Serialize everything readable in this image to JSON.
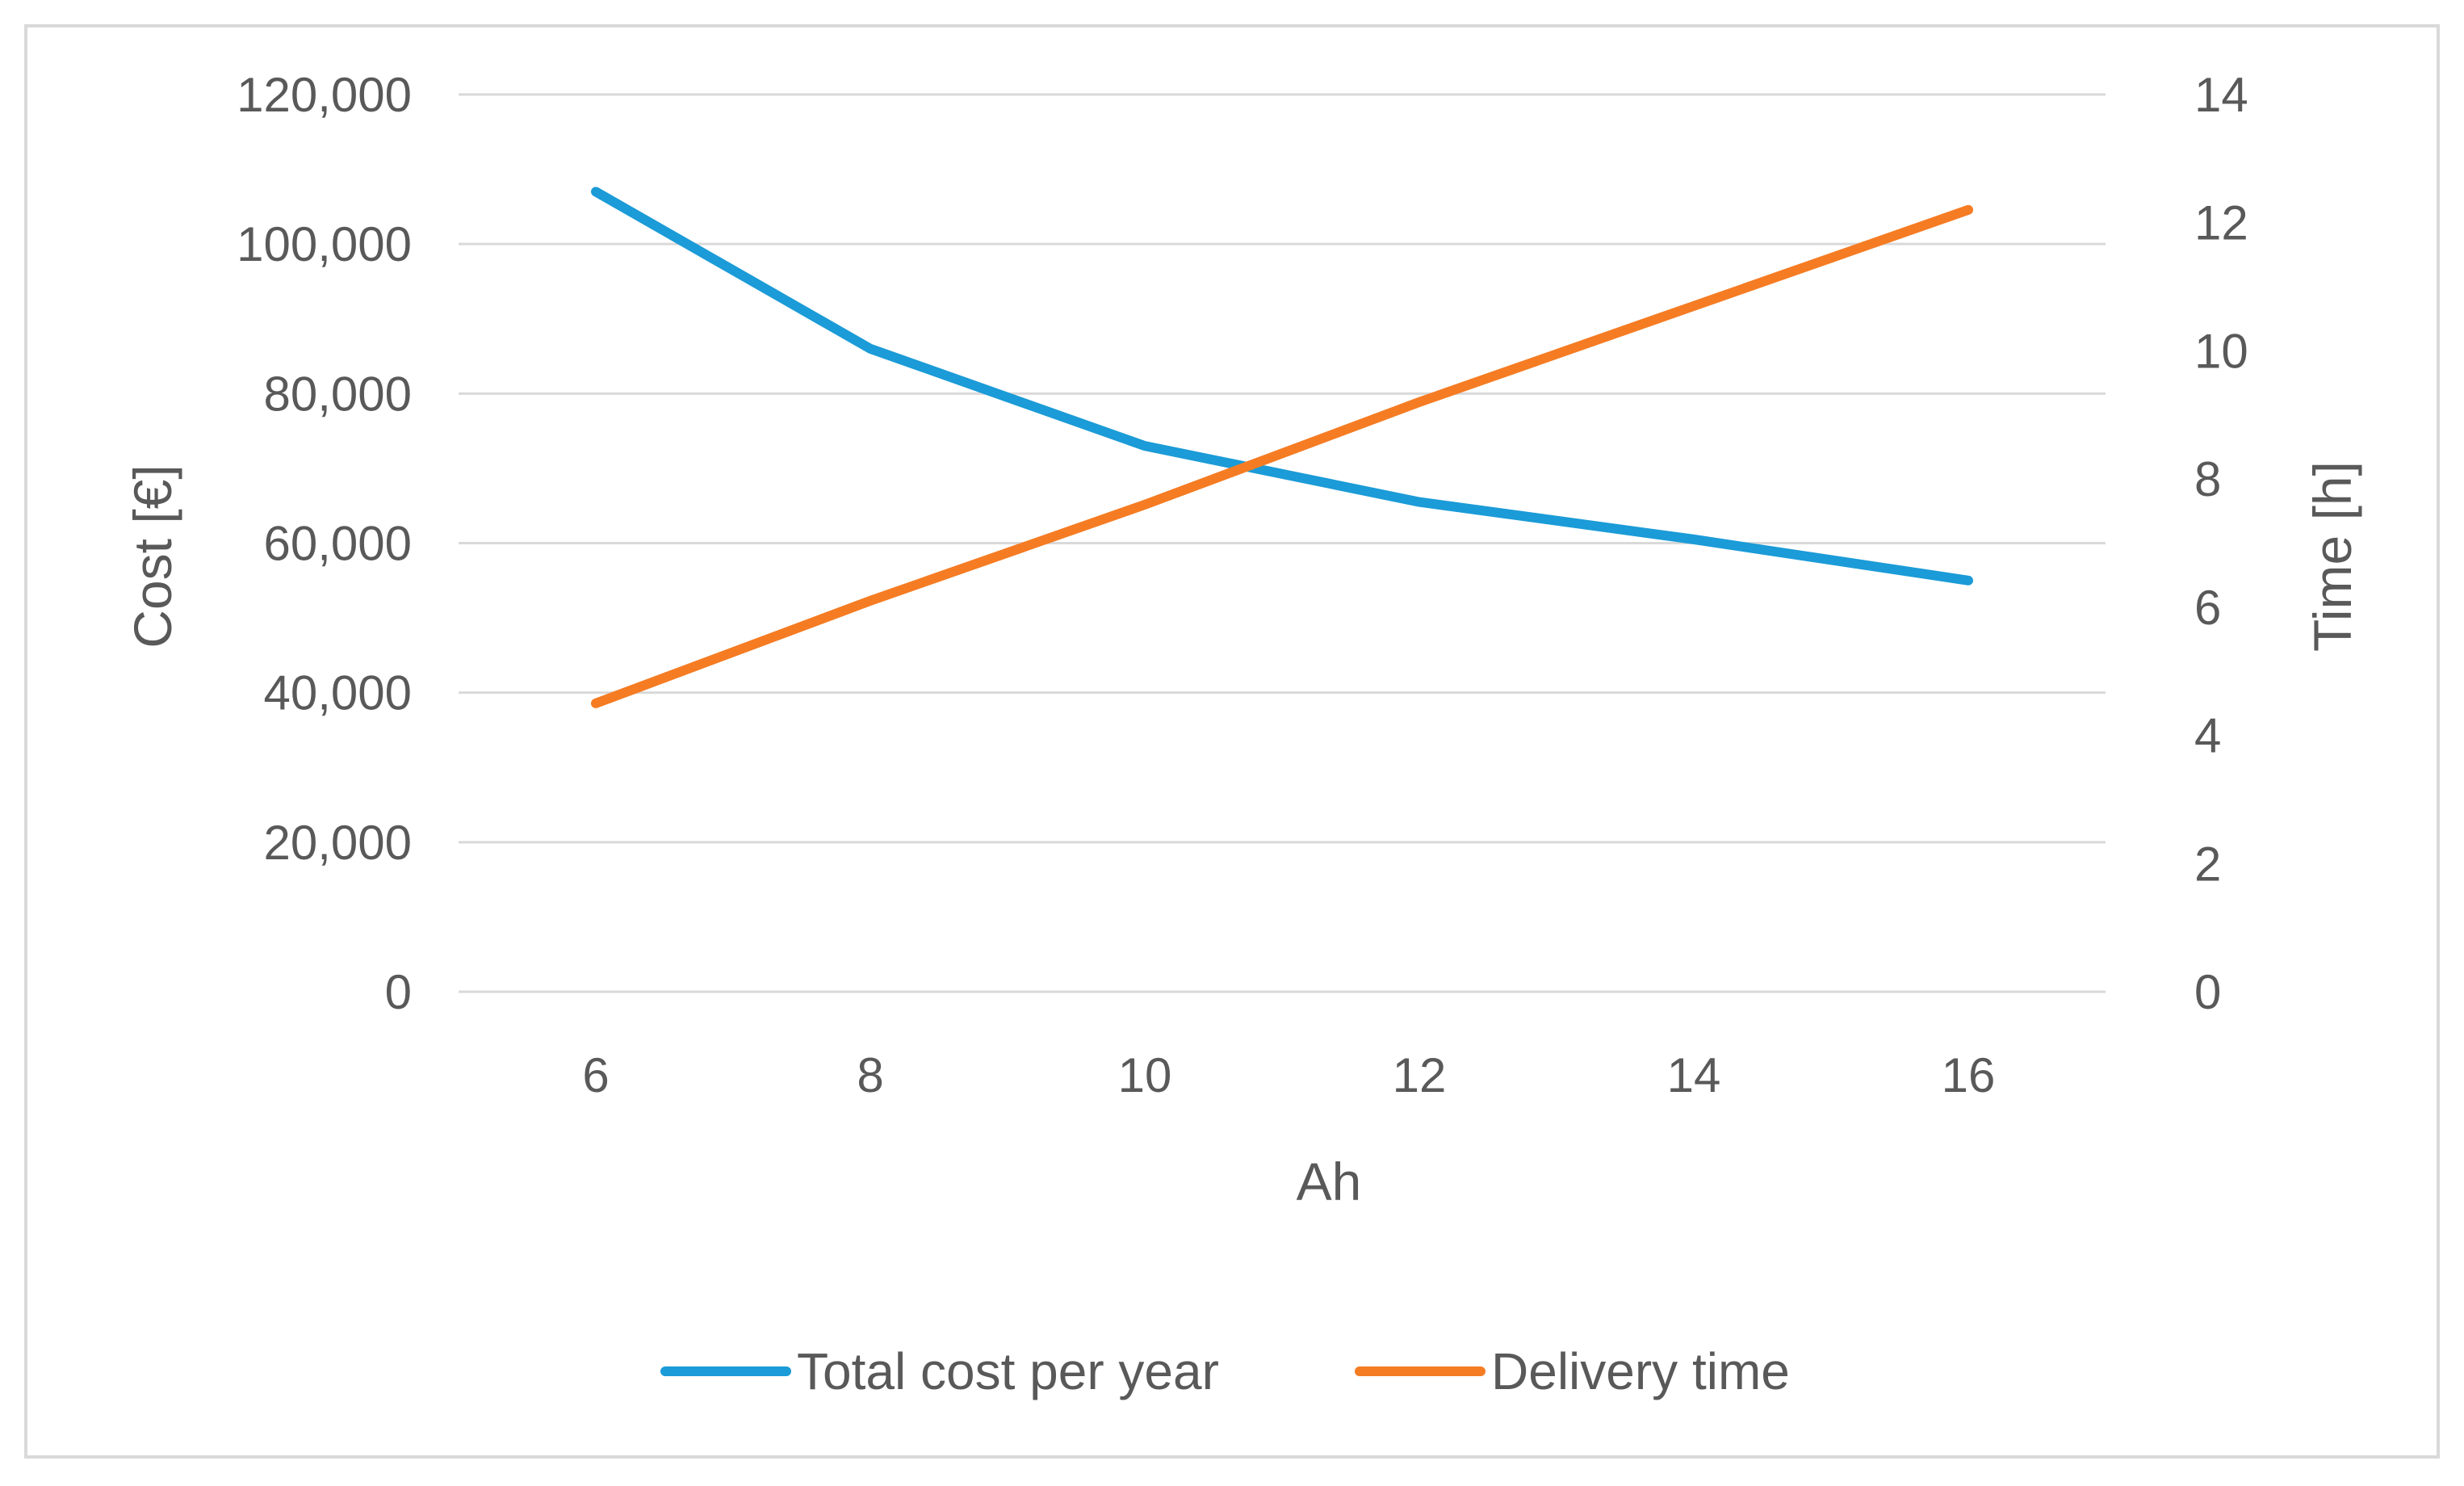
{
  "chart_data": {
    "type": "line",
    "title": "",
    "xlabel": "Ah",
    "ylabel": "Cost [€]",
    "y2label": "Time [h]",
    "x": [
      6,
      8,
      10,
      12,
      14,
      16
    ],
    "x_tick_labels": [
      "6",
      "8",
      "10",
      "12",
      "14",
      "16"
    ],
    "xlim": [
      5,
      17
    ],
    "ylim": [
      0,
      120000
    ],
    "y_ticks": [
      0,
      20000,
      40000,
      60000,
      80000,
      100000,
      120000
    ],
    "y_tick_labels": [
      "0",
      "20,000",
      "40,000",
      "60,000",
      "80,000",
      "100,000",
      "120,000"
    ],
    "y2lim": [
      0,
      14
    ],
    "y2_ticks": [
      0,
      2,
      4,
      6,
      8,
      10,
      12,
      14
    ],
    "y2_tick_labels": [
      "0",
      "2",
      "4",
      "6",
      "8",
      "10",
      "12",
      "14"
    ],
    "grid": true,
    "legend_position": "bottom",
    "series": [
      {
        "name": "Total cost per year",
        "axis": "left",
        "color": "#1b9bd7",
        "values": [
          107000,
          86000,
          73000,
          65500,
          60500,
          55000
        ]
      },
      {
        "name": "Delivery time",
        "axis": "right",
        "color": "#f57c23",
        "values": [
          4.5,
          6.1,
          7.6,
          9.2,
          10.7,
          12.2
        ]
      }
    ]
  }
}
